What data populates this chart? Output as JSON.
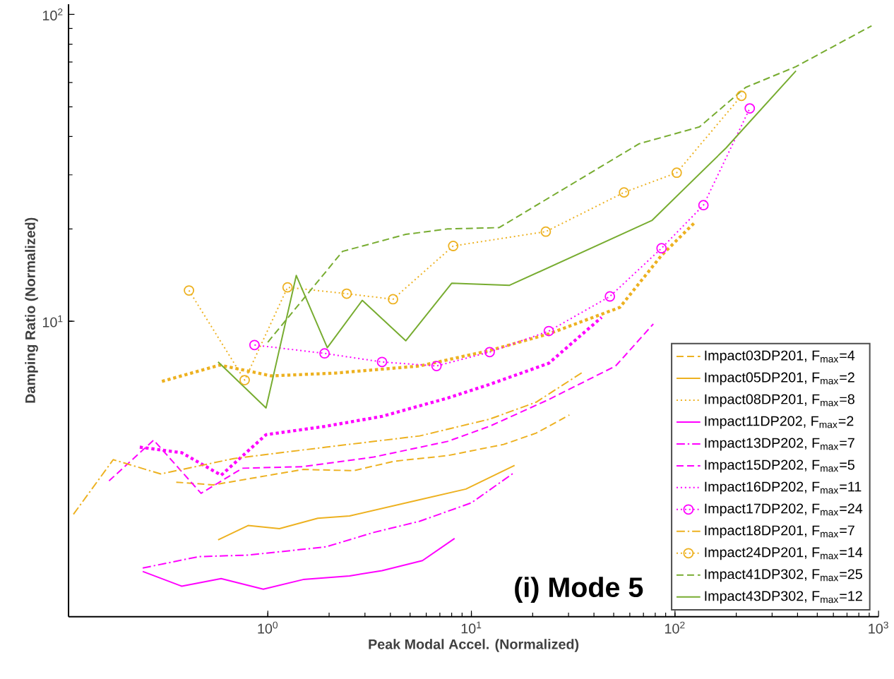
{
  "chart_data": {
    "type": "line",
    "xlabel": "Peak Modal Accel. (Normalized)",
    "ylabel": "Damping Ratio (Normalized)",
    "log": "xy",
    "xlim": [
      0.105,
      1000
    ],
    "ylim": [
      1.09,
      108
    ],
    "xticks": [
      {
        "value": 1,
        "label": "10$^{0}$"
      },
      {
        "value": 10,
        "label": "10$^{1}$"
      },
      {
        "value": 100,
        "label": "10$^{2}$"
      },
      {
        "value": 1000,
        "label": "10$^{3}$"
      }
    ],
    "yticks": [
      {
        "value": 10,
        "label": "10$^{1}$"
      },
      {
        "value": 100,
        "label": "10$^{2}$"
      }
    ],
    "grid": false,
    "legend": "bottom right",
    "annotations": [
      "(i) Mode 5"
    ],
    "series": [
      {
        "name": "Impact03DP201, F$_{max}$=4",
        "color": "#edb120",
        "line_style": "dashed",
        "x": [
          0.355,
          0.54,
          1.49,
          2.64,
          4.19,
          7.64,
          14.4,
          20.8,
          30.3
        ],
        "values": [
          2.99,
          2.93,
          3.29,
          3.26,
          3.5,
          3.65,
          3.97,
          4.32,
          4.95
        ]
      },
      {
        "name": "Impact05DP201, F$_{max}$=2",
        "color": "#edb120",
        "line_style": "solid",
        "x": [
          0.57,
          0.8,
          1.14,
          1.76,
          2.52,
          5.57,
          9.4,
          16.3
        ],
        "values": [
          1.94,
          2.16,
          2.11,
          2.28,
          2.32,
          2.62,
          2.84,
          3.39
        ]
      },
      {
        "name": "Impact08DP201, F$_{max}$=8",
        "color": "#edb120",
        "line_style": "dotted",
        "x": [
          0.302,
          0.58,
          1.04,
          2.15,
          5.57,
          12.3,
          24.0,
          53.6,
          85.9,
          126
        ],
        "values": [
          6.37,
          7.2,
          6.64,
          6.78,
          7.15,
          8.03,
          9.1,
          11.1,
          16.4,
          21.1
        ]
      },
      {
        "name": "Impact11DP202, F$_{max}$=2",
        "color": "#ff00ff",
        "line_style": "solid",
        "x": [
          0.243,
          0.378,
          0.59,
          0.95,
          1.49,
          2.52,
          3.64,
          5.75,
          8.27
        ],
        "values": [
          1.53,
          1.37,
          1.45,
          1.34,
          1.44,
          1.48,
          1.54,
          1.66,
          1.96
        ]
      },
      {
        "name": "Impact13DP202, F$_{max}$=7",
        "color": "#ff00ff",
        "line_style": "dashdot",
        "x": [
          0.243,
          0.457,
          0.8,
          1.93,
          3.31,
          5.57,
          10.0,
          16.3
        ],
        "values": [
          1.57,
          1.71,
          1.73,
          1.84,
          2.05,
          2.23,
          2.56,
          3.22
        ]
      },
      {
        "name": "Impact15DP202, F$_{max}$=5",
        "color": "#ff00ff",
        "line_style": "dashed",
        "x": [
          0.166,
          0.275,
          0.47,
          0.75,
          1.49,
          3.31,
          7.64,
          12.3,
          24.0,
          51.1,
          78.3
        ],
        "values": [
          3.02,
          4.1,
          2.75,
          3.32,
          3.36,
          3.61,
          4.06,
          4.55,
          5.56,
          7.15,
          9.8
        ]
      },
      {
        "name": "Impact16DP202, F$_{max}$=11",
        "color": "#ff00ff",
        "line_style": "dotted",
        "x": [
          0.235,
          0.378,
          0.59,
          0.98,
          1.93,
          3.64,
          7.64,
          12.3,
          24.0,
          43.6
        ],
        "values": [
          3.89,
          3.73,
          3.15,
          4.27,
          4.55,
          4.9,
          5.62,
          6.23,
          7.3,
          10.3
        ]
      },
      {
        "name": "Impact17DP202, F$_{max}$=24",
        "color": "#ff00ff",
        "line_style": "dotted",
        "marker": "circle",
        "x": [
          0.86,
          1.9,
          3.64,
          6.74,
          12.3,
          24.0,
          47.9,
          85.9,
          138,
          233
        ],
        "values": [
          8.37,
          7.86,
          7.37,
          7.15,
          7.94,
          9.29,
          12.05,
          17.3,
          23.9,
          49.4
        ]
      },
      {
        "name": "Impact18DP201, F$_{max}$=7",
        "color": "#edb120",
        "line_style": "dashdot",
        "x": [
          0.111,
          0.174,
          0.298,
          0.68,
          1.93,
          5.57,
          12.3,
          20.8,
          35.5
        ],
        "values": [
          2.35,
          3.54,
          3.18,
          3.57,
          3.89,
          4.23,
          4.8,
          5.45,
          6.85
        ]
      },
      {
        "name": "Impact24DP201, F$_{max}$=14",
        "color": "#edb120",
        "line_style": "dotted",
        "marker": "circle",
        "x": [
          0.41,
          0.77,
          1.25,
          2.44,
          4.12,
          8.14,
          23.2,
          56.2,
          102,
          212
        ],
        "values": [
          12.6,
          6.43,
          12.9,
          12.3,
          11.8,
          17.6,
          19.6,
          26.3,
          30.5,
          54.3
        ]
      },
      {
        "name": "Impact41DP302, F$_{max}$=25",
        "color": "#77ac30",
        "line_style": "dashed",
        "x": [
          1.0,
          2.33,
          4.76,
          7.64,
          13.7,
          66.7,
          132,
          222,
          393,
          924
        ],
        "values": [
          8.55,
          16.9,
          19.2,
          20.0,
          20.2,
          37.9,
          43.0,
          57.8,
          67.6,
          91.8
        ]
      },
      {
        "name": "Impact43DP302, F$_{max}$=12",
        "color": "#77ac30",
        "line_style": "solid",
        "x": [
          0.57,
          0.98,
          1.38,
          1.96,
          2.91,
          4.76,
          8.0,
          15.4,
          77,
          178,
          393
        ],
        "values": [
          7.37,
          5.22,
          14.1,
          8.2,
          11.7,
          8.64,
          13.3,
          13.1,
          21.3,
          36.7,
          65.5
        ]
      }
    ]
  }
}
